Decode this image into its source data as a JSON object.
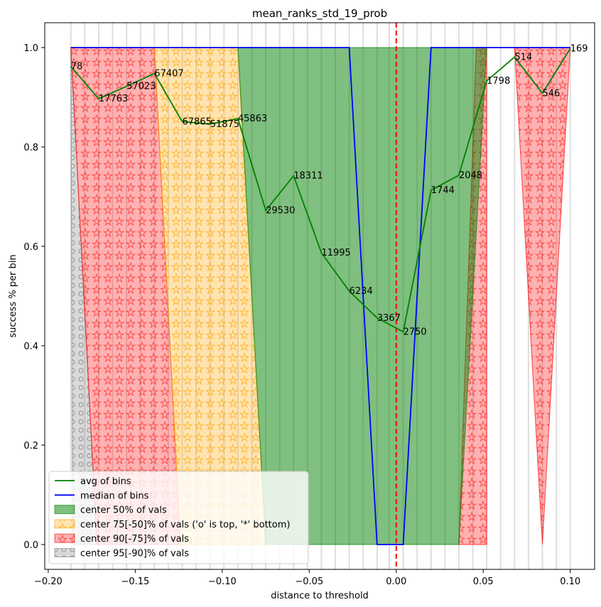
{
  "chart_data": {
    "type": "line",
    "title": "mean_ranks_std_19_prob",
    "xlabel": "distance to threshold",
    "ylabel": "success % per bin",
    "xlim": [
      -0.202,
      0.114
    ],
    "ylim": [
      -0.05,
      1.05
    ],
    "x_ticks": [
      -0.2,
      -0.15,
      -0.1,
      -0.05,
      0.0,
      0.05,
      0.1
    ],
    "x_tick_labels": [
      "−0.20",
      "−0.15",
      "−0.10",
      "−0.05",
      "0.00",
      "0.05",
      "0.10"
    ],
    "y_ticks": [
      0.0,
      0.2,
      0.4,
      0.6,
      0.8,
      1.0
    ],
    "y_tick_labels": [
      "0.0",
      "0.2",
      "0.4",
      "0.6",
      "0.8",
      "1.0"
    ],
    "threshold_x": 0.0,
    "bin_edges": [
      -0.187,
      -0.179,
      -0.171,
      -0.163,
      -0.155,
      -0.147,
      -0.139,
      -0.131,
      -0.123,
      -0.115,
      -0.107,
      -0.099,
      -0.091,
      -0.083,
      -0.075,
      -0.067,
      -0.059,
      -0.051,
      -0.043,
      -0.035,
      -0.027,
      -0.019,
      -0.011,
      -0.004,
      0.004,
      0.012,
      0.02,
      0.028,
      0.036,
      0.044,
      0.052,
      0.06,
      0.068,
      0.076,
      0.084,
      0.092,
      0.1
    ],
    "series": [
      {
        "name": "avg of bins",
        "color": "#008000",
        "x": [
          -0.187,
          -0.171,
          -0.155,
          -0.139,
          -0.123,
          -0.107,
          -0.091,
          -0.075,
          -0.059,
          -0.043,
          -0.027,
          -0.011,
          0.004,
          0.02,
          0.036,
          0.052,
          0.068,
          0.084,
          0.1
        ],
        "y": [
          0.962,
          0.897,
          0.922,
          0.948,
          0.851,
          0.846,
          0.857,
          0.672,
          0.742,
          0.587,
          0.51,
          0.456,
          0.428,
          0.713,
          0.743,
          0.933,
          0.981,
          0.908,
          0.998
        ],
        "labels": [
          "78",
          "17763",
          "57023",
          "67407",
          "67865",
          "51875",
          "45863",
          "29530",
          "18311",
          "11995",
          "6234",
          "3367",
          "2750",
          "1744",
          "2048",
          "1798",
          "514",
          "546",
          "169"
        ]
      },
      {
        "name": "median of bins",
        "color": "#0000ff",
        "x": [
          -0.187,
          -0.171,
          -0.155,
          -0.139,
          -0.123,
          -0.107,
          -0.091,
          -0.075,
          -0.059,
          -0.043,
          -0.027,
          -0.011,
          0.004,
          0.02,
          0.036,
          0.052,
          0.068,
          0.084,
          0.1
        ],
        "y": [
          1,
          1,
          1,
          1,
          1,
          1,
          1,
          1,
          1,
          1,
          1,
          0,
          0,
          1,
          1,
          1,
          1,
          1,
          1
        ]
      }
    ],
    "bands": [
      {
        "name": "center 95[-90]% of vals",
        "color": "#808080",
        "hatch": "o",
        "polygons": [
          [
            [
              -0.187,
              1.0
            ],
            [
              -0.186,
              0.0
            ],
            [
              -0.172,
              0.0
            ],
            [
              -0.187,
              1.0
            ]
          ]
        ]
      },
      {
        "name": "center 90[-75]% of vals",
        "color": "#ff0000",
        "hatch": "*",
        "polygons": [
          [
            [
              -0.187,
              1.0
            ],
            [
              -0.139,
              1.0
            ],
            [
              -0.124,
              0.0
            ],
            [
              -0.172,
              0.0
            ]
          ],
          [
            [
              0.036,
              0.0
            ],
            [
              0.052,
              0.0
            ],
            [
              0.052,
              1.0
            ],
            [
              0.046,
              1.0
            ]
          ],
          [
            [
              0.068,
              1.0
            ],
            [
              0.1,
              1.0
            ],
            [
              0.084,
              0.0
            ]
          ]
        ]
      },
      {
        "name": "center 75[-50]% of vals ('o' is top, '*' bottom)",
        "color": "#ffa500",
        "hatch": "*",
        "polygons": [
          [
            [
              -0.139,
              1.0
            ],
            [
              -0.091,
              1.0
            ],
            [
              -0.075,
              0.0
            ],
            [
              -0.124,
              0.0
            ]
          ]
        ]
      },
      {
        "name": "center 50% of vals",
        "color": "#008000",
        "hatch": "",
        "polygons": [
          [
            [
              -0.091,
              1.0
            ],
            [
              0.052,
              1.0
            ],
            [
              0.036,
              0.0
            ],
            [
              -0.075,
              0.0
            ]
          ]
        ]
      }
    ],
    "legend": {
      "position": "lower left",
      "entries": [
        {
          "label": "avg of bins",
          "kind": "line",
          "color": "#008000"
        },
        {
          "label": "median of bins",
          "kind": "line",
          "color": "#0000ff"
        },
        {
          "label": "center 50% of vals",
          "kind": "patch",
          "color": "#008000",
          "hatch": ""
        },
        {
          "label": "center 75[-50]% of vals ('o' is top, '*' bottom)",
          "kind": "patch",
          "color": "#ffa500",
          "hatch": "*"
        },
        {
          "label": "center 90[-75]% of vals",
          "kind": "patch",
          "color": "#ff0000",
          "hatch": "*"
        },
        {
          "label": "center 95[-90]% of vals",
          "kind": "patch",
          "color": "#808080",
          "hatch": "o"
        }
      ]
    }
  }
}
